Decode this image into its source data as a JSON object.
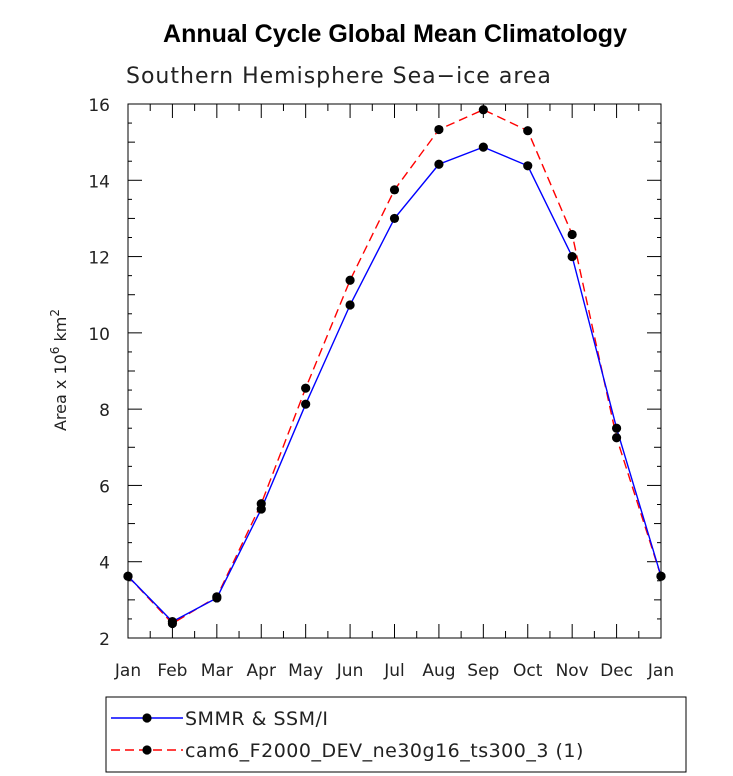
{
  "chart_data": {
    "type": "line",
    "title": "Annual Cycle Global Mean Climatology",
    "subtitle": "Southern Hemisphere Sea−ice area",
    "ylabel": "Area x 10",
    "ylabel_sup1": "6",
    "ylabel_mid": " km",
    "ylabel_sup2": "2",
    "categories": [
      "Jan",
      "Feb",
      "Mar",
      "Apr",
      "May",
      "Jun",
      "Jul",
      "Aug",
      "Sep",
      "Oct",
      "Nov",
      "Dec",
      "Jan"
    ],
    "yticks": [
      "2",
      "4",
      "6",
      "8",
      "10",
      "12",
      "14",
      "16"
    ],
    "ylim": [
      2,
      16
    ],
    "series": [
      {
        "name": "SMMR & SSM/I",
        "color": "#0000ff",
        "dash": "solid",
        "values": [
          3.62,
          2.43,
          3.05,
          5.38,
          8.13,
          10.73,
          13.0,
          14.42,
          14.87,
          14.38,
          12.0,
          7.5,
          3.62
        ]
      },
      {
        "name": "cam6_F2000_DEV_ne30g16_ts300_3 (1)",
        "color": "#ff0000",
        "dash": "dashed",
        "values": [
          3.62,
          2.38,
          3.08,
          5.52,
          8.55,
          11.38,
          13.75,
          15.33,
          15.85,
          15.3,
          12.58,
          7.25,
          3.62
        ]
      }
    ],
    "legend_position": "bottom"
  }
}
